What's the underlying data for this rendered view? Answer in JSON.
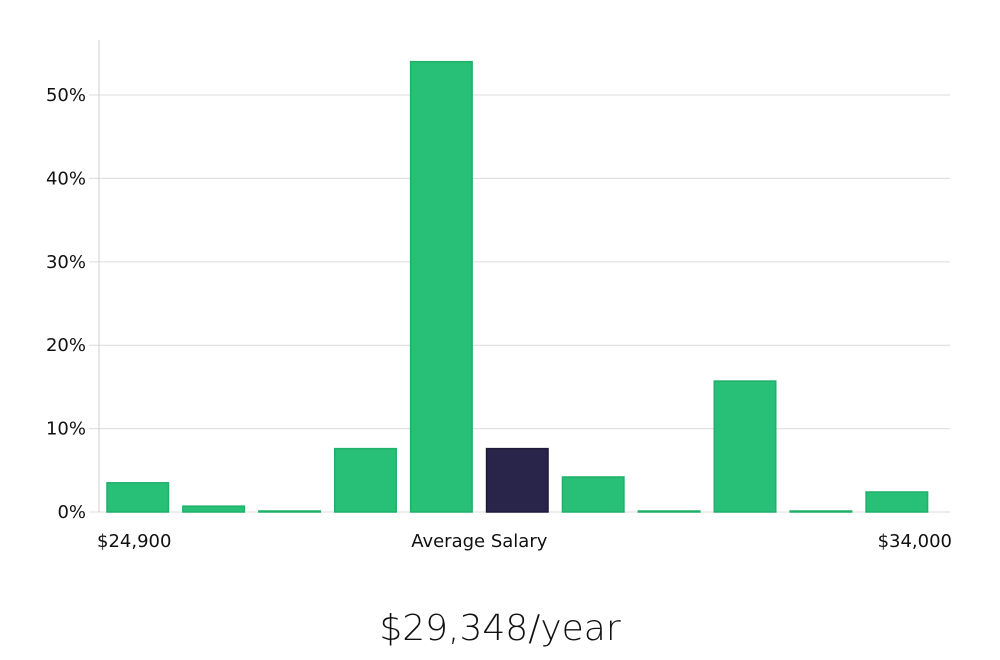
{
  "chart_data": {
    "type": "bar",
    "title": "",
    "xlabel": "",
    "ylabel": "",
    "ylim": [
      0,
      0.566
    ],
    "yticks": [
      0,
      0.1,
      0.2,
      0.3,
      0.4,
      0.5
    ],
    "ytick_labels": [
      "0%",
      "10%",
      "20%",
      "30%",
      "40%",
      "50%"
    ],
    "grid": true,
    "values": [
      0.035,
      0.007,
      0.001,
      0.076,
      0.54,
      0.076,
      0.042,
      0.001,
      0.157,
      0.001,
      0.024
    ],
    "highlight_index": 5,
    "bar_color": "#28bf76",
    "highlight_color": "#28244a",
    "x_labels": {
      "min": "$24,900",
      "middle": "Average Salary",
      "max": "$34,000"
    }
  },
  "salary_label": "$29,348/year"
}
